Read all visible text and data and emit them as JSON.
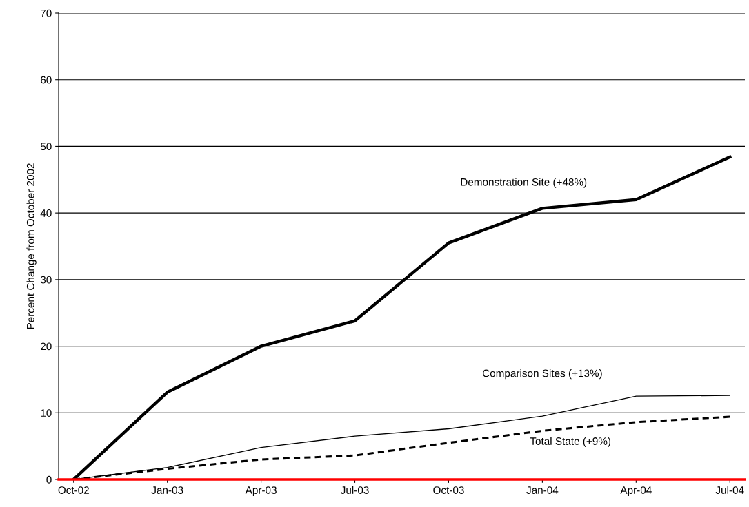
{
  "chart_data": {
    "type": "line",
    "ylabel": "Percent Change from October 2002",
    "categories": [
      "Oct-02",
      "Jan-03",
      "Apr-03",
      "Jul-03",
      "Oct-03",
      "Jan-04",
      "Apr-04",
      "Jul-04"
    ],
    "series": [
      {
        "name": "Demonstration Site (+48%)",
        "color": "#000000",
        "line_style": "solid",
        "values": [
          0,
          13.1,
          20.0,
          23.8,
          35.5,
          40.7,
          42.0,
          48.4
        ]
      },
      {
        "name": "Comparison Sites (+13%)",
        "color": "#000000",
        "line_style": "solid",
        "values": [
          0,
          1.8,
          4.8,
          6.5,
          7.6,
          9.5,
          12.5,
          12.6
        ]
      },
      {
        "name": "Total State (+9%)",
        "color": "#000000",
        "line_style": "dashed",
        "values": [
          0,
          1.6,
          3.0,
          3.6,
          5.5,
          7.3,
          8.6,
          9.4
        ]
      }
    ],
    "ylim": [
      0,
      70
    ],
    "yticks": [
      0,
      10,
      20,
      30,
      40,
      50,
      60,
      70
    ],
    "grid": "y",
    "marker": "none"
  }
}
